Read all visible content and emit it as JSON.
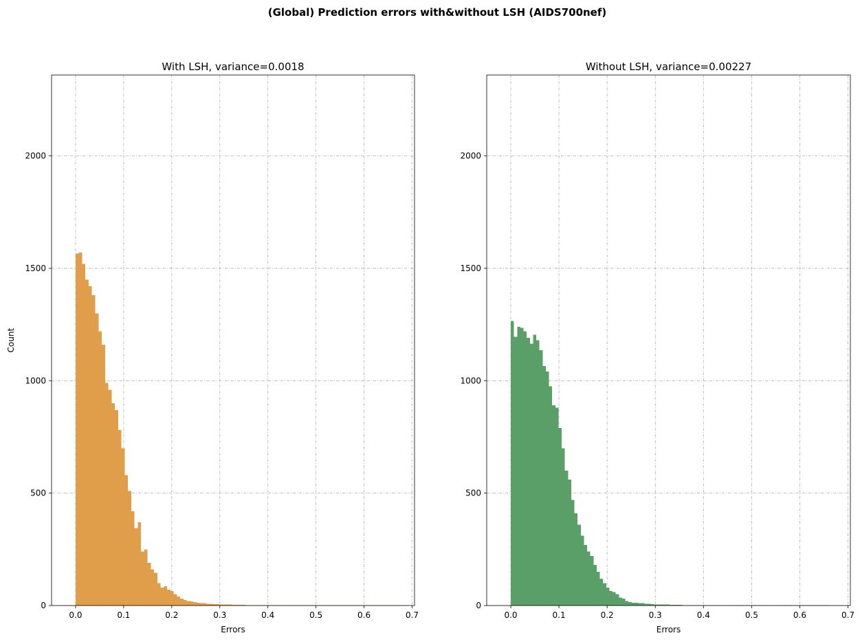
{
  "figure_title": "(Global) Prediction errors with&without LSH (AIDS700nef)",
  "chart_data": [
    {
      "type": "bar",
      "subtype": "histogram",
      "title": "With LSH, variance=0.0018",
      "xlabel": "Errors",
      "ylabel": "Count",
      "xlim": [
        -0.05,
        0.705
      ],
      "ylim": [
        0,
        2360
      ],
      "xticks": [
        0.0,
        0.1,
        0.2,
        0.3,
        0.4,
        0.5,
        0.6,
        0.7
      ],
      "xtick_labels": [
        "0.0",
        "0.1",
        "0.2",
        "0.3",
        "0.4",
        "0.5",
        "0.6",
        "0.7"
      ],
      "yticks": [
        0,
        500,
        1000,
        1500,
        2000
      ],
      "ytick_labels": [
        "0",
        "500",
        "1000",
        "1500",
        "2000"
      ],
      "grid": true,
      "color": "#e09e4a",
      "bin_start": 0.0,
      "bin_width": 0.0068,
      "values": [
        1565,
        1570,
        1520,
        1450,
        1420,
        1380,
        1300,
        1220,
        1160,
        990,
        960,
        900,
        870,
        780,
        700,
        580,
        510,
        420,
        345,
        370,
        240,
        250,
        190,
        160,
        145,
        100,
        80,
        85,
        70,
        65,
        50,
        40,
        30,
        25,
        20,
        18,
        15,
        12,
        10,
        10,
        8,
        8,
        6,
        6,
        5,
        4,
        4,
        4,
        3,
        3,
        3,
        3,
        2,
        2,
        2,
        2,
        2,
        2,
        2,
        2,
        2,
        1,
        1,
        1,
        1,
        1,
        1,
        1,
        1,
        1,
        1,
        1,
        1,
        1,
        1,
        1,
        1,
        1,
        1,
        1,
        1,
        1,
        1,
        1,
        1,
        1,
        1,
        1,
        1,
        1,
        1,
        1,
        1,
        1,
        1,
        1,
        1,
        1,
        1,
        1
      ]
    },
    {
      "type": "bar",
      "subtype": "histogram",
      "title": "Without LSH, variance=0.00227",
      "xlabel": "Errors",
      "ylabel": "",
      "xlim": [
        -0.05,
        0.705
      ],
      "ylim": [
        0,
        2360
      ],
      "xticks": [
        0.0,
        0.1,
        0.2,
        0.3,
        0.4,
        0.5,
        0.6,
        0.7
      ],
      "xtick_labels": [
        "0.0",
        "0.1",
        "0.2",
        "0.3",
        "0.4",
        "0.5",
        "0.6",
        "0.7"
      ],
      "yticks": [
        0,
        500,
        1000,
        1500,
        2000
      ],
      "ytick_labels": [
        "0",
        "500",
        "1000",
        "1500",
        "2000"
      ],
      "grid": true,
      "color": "#5a9f68",
      "bin_start": 0.0,
      "bin_width": 0.0066,
      "values": [
        1265,
        1195,
        1240,
        1235,
        1220,
        1190,
        1165,
        1205,
        1180,
        1135,
        1065,
        1040,
        975,
        890,
        880,
        790,
        700,
        600,
        560,
        470,
        410,
        360,
        310,
        270,
        240,
        220,
        180,
        150,
        120,
        100,
        80,
        65,
        60,
        50,
        35,
        30,
        20,
        15,
        12,
        12,
        10,
        10,
        8,
        8,
        6,
        5,
        5,
        4,
        4,
        4,
        3,
        3,
        3,
        3,
        2,
        2,
        2,
        2,
        2,
        2,
        2,
        2,
        2,
        1,
        1,
        1,
        1,
        1,
        1,
        1,
        1,
        1,
        1,
        1,
        1,
        1,
        1,
        1,
        1,
        1,
        1,
        1,
        1,
        1,
        1,
        1,
        1,
        1,
        1,
        1,
        1,
        1,
        1,
        1,
        1,
        1,
        1,
        1,
        1,
        1
      ]
    }
  ]
}
